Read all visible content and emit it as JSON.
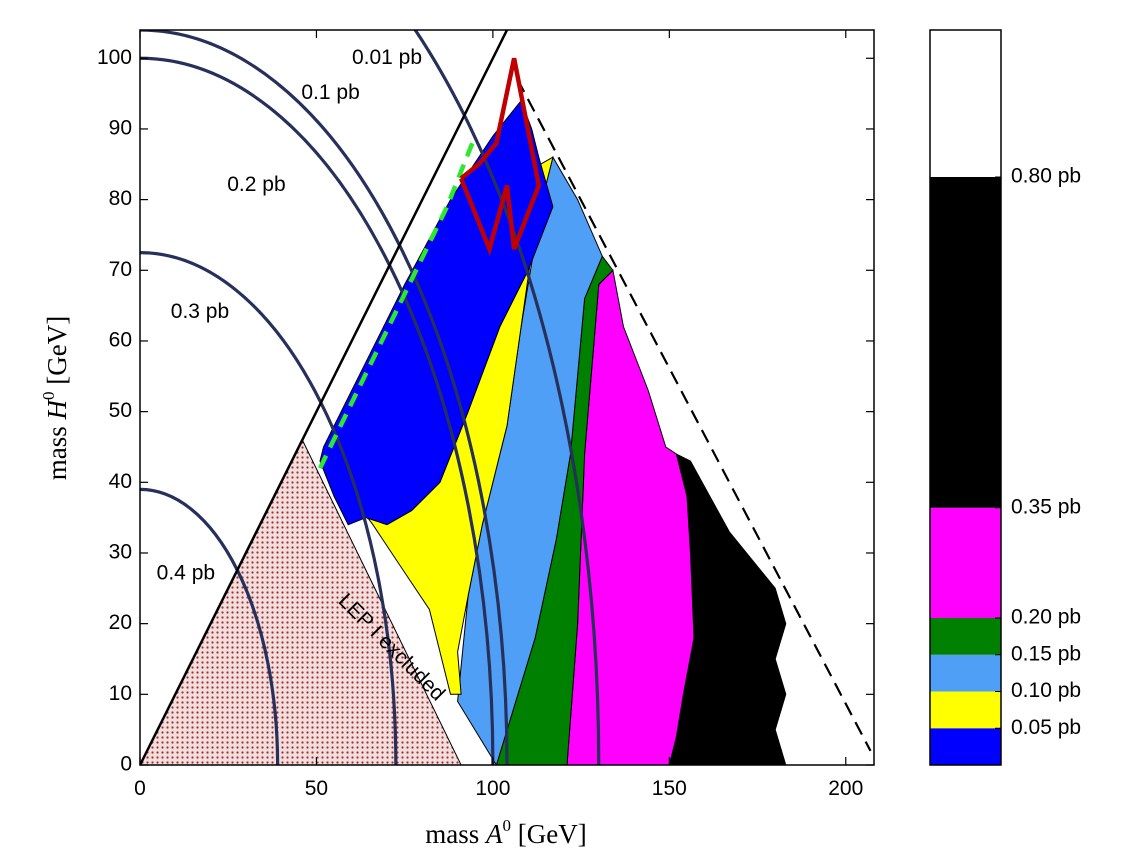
{
  "chart_data": {
    "type": "area",
    "xlabel_prefix": "mass",
    "xlabel_symbol": "A",
    "xlabel_sup": "0",
    "xlabel_unit": "[GeV]",
    "ylabel_prefix": "mass",
    "ylabel_symbol": "H",
    "ylabel_sup": "0",
    "ylabel_unit": "[GeV]",
    "xlim": [
      0,
      208
    ],
    "ylim": [
      0,
      104
    ],
    "xticks": [
      0,
      50,
      100,
      150,
      200
    ],
    "yticks": [
      0,
      10,
      20,
      30,
      40,
      50,
      60,
      70,
      80,
      90,
      100
    ],
    "kinematic_limit": [
      [
        0,
        0
      ],
      [
        104,
        104
      ],
      [
        208,
        0
      ]
    ],
    "dashed_limit": [
      [
        107,
        97
      ],
      [
        207,
        2
      ]
    ],
    "lep1_excluded": {
      "label": "LEP I excluded",
      "polygon": [
        [
          0,
          0
        ],
        [
          46,
          46
        ],
        [
          91,
          0
        ]
      ],
      "color": "#f0d8d8",
      "dot_color": "#9b3030"
    },
    "contours": [
      {
        "label": "0.01 pb",
        "radius": 104,
        "label_at": [
          70,
          100
        ]
      },
      {
        "label": "0.1 pb",
        "radius": 130,
        "label_at": [
          54,
          95
        ]
      },
      {
        "label": "0.2 pb",
        "radius": 100,
        "label_at": [
          33,
          82
        ]
      },
      {
        "label": "0.3 pb",
        "radius": 72.5,
        "label_at": [
          17,
          64
        ]
      },
      {
        "label": "0.4 pb",
        "radius": 39,
        "label_at": [
          13,
          27
        ]
      }
    ],
    "regions": [
      {
        "range": "0.35-0.80 pb",
        "color": "#000000",
        "polygon": [
          [
            150,
            0
          ],
          [
            183,
            0
          ],
          [
            180,
            5
          ],
          [
            183,
            10
          ],
          [
            180,
            15
          ],
          [
            183,
            20
          ],
          [
            180,
            25
          ],
          [
            167,
            33
          ],
          [
            156,
            43
          ],
          [
            152,
            44
          ],
          [
            155,
            38
          ],
          [
            156,
            30
          ],
          [
            157,
            18
          ],
          [
            154,
            10
          ],
          [
            152,
            4
          ]
        ]
      },
      {
        "range": "0.20-0.35 pb",
        "color": "#ff00ff",
        "polygon": [
          [
            121,
            0
          ],
          [
            150,
            0
          ],
          [
            152,
            4
          ],
          [
            154,
            10
          ],
          [
            157,
            18
          ],
          [
            156,
            30
          ],
          [
            155,
            38
          ],
          [
            152,
            44
          ],
          [
            149,
            45
          ],
          [
            144,
            53
          ],
          [
            137,
            62
          ],
          [
            134,
            70
          ],
          [
            130,
            68
          ],
          [
            126,
            44
          ],
          [
            124,
            20
          ]
        ]
      },
      {
        "range": "0.15-0.20 pb",
        "color": "#008000",
        "polygon": [
          [
            101,
            0
          ],
          [
            121,
            0
          ],
          [
            124,
            20
          ],
          [
            126,
            44
          ],
          [
            130,
            68
          ],
          [
            134,
            70
          ],
          [
            131,
            72
          ],
          [
            126,
            66
          ],
          [
            122,
            44
          ],
          [
            118,
            32
          ],
          [
            112,
            18
          ]
        ]
      },
      {
        "range": "0.10-0.15 pb",
        "color": "#4f9ff6",
        "polygon": [
          [
            90,
            9
          ],
          [
            101,
            0
          ],
          [
            112,
            18
          ],
          [
            118,
            32
          ],
          [
            122,
            44
          ],
          [
            126,
            66
          ],
          [
            131,
            72
          ],
          [
            124,
            80
          ],
          [
            117,
            86
          ],
          [
            114,
            80
          ],
          [
            108,
            62
          ],
          [
            104,
            48
          ],
          [
            97,
            34
          ],
          [
            93,
            24
          ]
        ]
      },
      {
        "range": "0.05-0.10 pb",
        "color": "#ffff00",
        "polygon": [
          [
            57,
            42
          ],
          [
            64,
            48
          ],
          [
            73,
            55
          ],
          [
            85,
            66
          ],
          [
            95,
            76
          ],
          [
            104,
            83
          ],
          [
            110,
            84
          ],
          [
            117,
            86
          ],
          [
            112,
            76
          ],
          [
            108,
            62
          ],
          [
            104,
            48
          ],
          [
            97,
            34
          ],
          [
            93,
            24
          ],
          [
            90,
            16
          ],
          [
            91,
            10
          ],
          [
            88,
            10
          ],
          [
            82,
            22
          ],
          [
            74,
            28
          ],
          [
            66,
            34
          ],
          [
            60,
            38
          ]
        ]
      },
      {
        "range": "0.00-0.05 pb",
        "color": "#0000ff",
        "polygon": [
          [
            51,
            43
          ],
          [
            52,
            45
          ],
          [
            62,
            55
          ],
          [
            75,
            68
          ],
          [
            88,
            80
          ],
          [
            100,
            89
          ],
          [
            108,
            94
          ],
          [
            111,
            90
          ],
          [
            113,
            86
          ],
          [
            117,
            79
          ],
          [
            110,
            70
          ],
          [
            102,
            62
          ],
          [
            93,
            50
          ],
          [
            85,
            40
          ],
          [
            77,
            36
          ],
          [
            70,
            34
          ],
          [
            64,
            35
          ],
          [
            59,
            34
          ],
          [
            55,
            38
          ]
        ]
      }
    ],
    "green_dashed_boundary": [
      [
        51,
        42
      ],
      [
        87,
        79
      ],
      [
        95,
        89
      ]
    ],
    "red_region": [
      [
        91,
        83
      ],
      [
        99,
        73
      ],
      [
        104,
        82
      ],
      [
        106,
        73
      ],
      [
        113,
        82
      ],
      [
        106,
        100
      ],
      [
        101,
        88
      ],
      [
        96,
        85
      ],
      [
        91,
        83
      ]
    ],
    "colorbar": {
      "min": 0,
      "max": 1.0,
      "bands": [
        {
          "from": 0.0,
          "to": 0.05,
          "color": "#0000ff"
        },
        {
          "from": 0.05,
          "to": 0.1,
          "color": "#ffff00"
        },
        {
          "from": 0.1,
          "to": 0.15,
          "color": "#4f9ff6"
        },
        {
          "from": 0.15,
          "to": 0.2,
          "color": "#008000"
        },
        {
          "from": 0.2,
          "to": 0.35,
          "color": "#ff00ff"
        },
        {
          "from": 0.35,
          "to": 0.8,
          "color": "#000000"
        },
        {
          "from": 0.8,
          "to": 1.0,
          "color": "#ffffff"
        }
      ],
      "ticks": [
        {
          "value": 0.05,
          "label": "0.05 pb"
        },
        {
          "value": 0.1,
          "label": "0.10 pb"
        },
        {
          "value": 0.15,
          "label": "0.15 pb"
        },
        {
          "value": 0.2,
          "label": "0.20 pb"
        },
        {
          "value": 0.35,
          "label": "0.35 pb"
        },
        {
          "value": 0.8,
          "label": "0.80 pb"
        }
      ]
    }
  }
}
